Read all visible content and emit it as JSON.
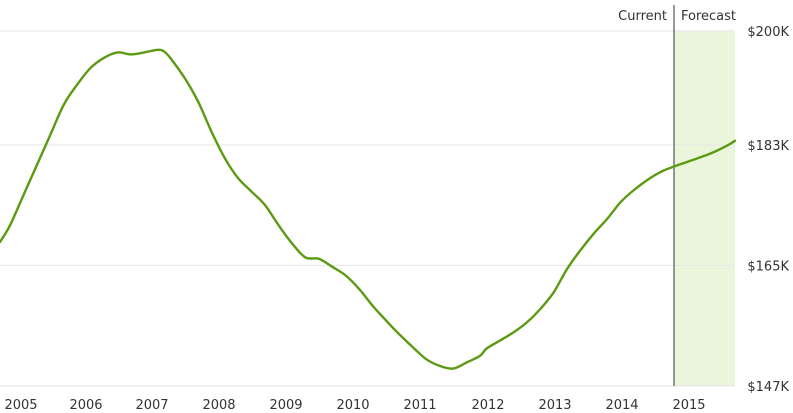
{
  "chart_data": {
    "type": "line",
    "title": "",
    "xlabel": "",
    "ylabel": "",
    "x_ticks": [
      "2005",
      "2006",
      "2007",
      "2008",
      "2009",
      "2010",
      "2011",
      "2012",
      "2013",
      "2014",
      "2015"
    ],
    "y_ticks": [
      "$200K",
      "$183K",
      "$165K",
      "$147K"
    ],
    "y_tick_values": [
      200000,
      183000,
      165000,
      147000
    ],
    "ylim": [
      147000,
      200000
    ],
    "xlim": [
      2004.95,
      2015.9
    ],
    "grid": "horizontal",
    "regions": {
      "current_label": "Current",
      "forecast_label": "Forecast",
      "forecast_start": 2015.0,
      "forecast_end": 2015.9
    },
    "series": [
      {
        "x": [
          2004.95,
          2005.1,
          2005.3,
          2005.5,
          2005.7,
          2005.9,
          2006.1,
          2006.3,
          2006.5,
          2006.7,
          2006.9,
          2007.1,
          2007.3,
          2007.4,
          2007.5,
          2007.7,
          2007.9,
          2008.1,
          2008.3,
          2008.5,
          2008.7,
          2008.9,
          2009.1,
          2009.3,
          2009.5,
          2009.7,
          2009.9,
          2010.1,
          2010.3,
          2010.5,
          2010.7,
          2010.9,
          2011.1,
          2011.3,
          2011.5,
          2011.7,
          2011.9,
          2012.1,
          2012.2,
          2012.4,
          2012.6,
          2012.8,
          2013.0,
          2013.2,
          2013.4,
          2013.6,
          2013.8,
          2014.0,
          2014.2,
          2014.4,
          2014.6,
          2014.8,
          2015.0,
          2015.2,
          2015.4,
          2015.6,
          2015.8,
          2015.9
        ],
        "values": [
          168.5,
          171.0,
          175.5,
          180.0,
          184.5,
          189.0,
          192.0,
          194.5,
          196.0,
          196.8,
          196.5,
          196.8,
          197.2,
          196.9,
          195.8,
          193.0,
          189.5,
          185.0,
          181.0,
          178.0,
          176.0,
          174.0,
          171.0,
          168.3,
          166.2,
          166.0,
          164.8,
          163.5,
          161.5,
          159.0,
          156.8,
          154.7,
          152.8,
          151.0,
          150.0,
          149.6,
          150.5,
          151.5,
          152.6,
          153.8,
          155.0,
          156.5,
          158.5,
          161.0,
          164.5,
          167.3,
          169.8,
          172.0,
          174.5,
          176.3,
          177.8,
          179.0,
          179.8,
          180.5,
          181.2,
          182.0,
          183.0,
          183.6
        ],
        "units": "$K",
        "color": "#5c9a12"
      }
    ],
    "colors": {
      "line": "#5c9a12",
      "forecast_fill": "#eaf6db",
      "divider": "#333333",
      "grid": "#e6e6e6",
      "text": "#333333"
    }
  }
}
